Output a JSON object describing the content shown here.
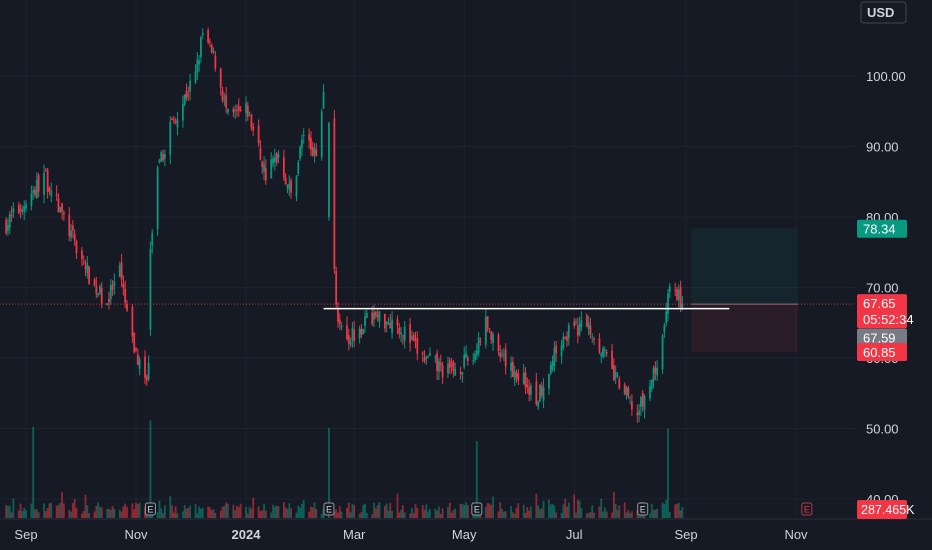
{
  "currency_button": "USD",
  "colors": {
    "background": "#161a25",
    "up": "#089981",
    "down": "#f23645",
    "price_line": "#f23645",
    "support_line": "#ffffff",
    "axis_text": "#d1d4dc",
    "gray_badge": "#787b86"
  },
  "badges": {
    "target": "78.34",
    "last_price": "67.65",
    "countdown": "05:52:34",
    "prev_close": "67.59",
    "stop": "60.85",
    "volume": "287.465K"
  },
  "earnings_marker": "E",
  "chart_data": {
    "type": "candlestick",
    "price_axis": {
      "ticks": [
        40,
        50,
        60,
        70,
        80,
        90,
        100
      ],
      "labels": [
        "40.00",
        "50.00",
        "60.00",
        "70.00",
        "80.00",
        "90.00",
        "100.00"
      ],
      "range": [
        39,
        110
      ]
    },
    "time_axis": {
      "labels": [
        "Sep",
        "Nov",
        "2024",
        "Mar",
        "May",
        "Jul",
        "Sep",
        "Nov"
      ],
      "dates": [
        "2023-09",
        "2023-11",
        "2024-01",
        "2024-03",
        "2024-05",
        "2024-07",
        "2024-09",
        "2024-11"
      ]
    },
    "gap_days": [
      "2024-02-14",
      "2024-02-15"
    ],
    "close_path": [
      [
        "2023-08-21",
        79
      ],
      [
        "2023-09-04",
        83
      ],
      [
        "2023-09-11",
        86
      ],
      [
        "2023-09-25",
        78
      ],
      [
        "2023-10-09",
        70
      ],
      [
        "2023-10-16",
        68
      ],
      [
        "2023-10-23",
        72
      ],
      [
        "2023-10-30",
        62
      ],
      [
        "2023-11-06",
        57
      ],
      [
        "2023-11-08",
        59
      ],
      [
        "2023-11-09",
        75
      ],
      [
        "2023-11-13",
        86
      ],
      [
        "2023-11-20",
        93
      ],
      [
        "2023-12-04",
        100
      ],
      [
        "2023-12-08",
        106
      ],
      [
        "2023-12-15",
        102
      ],
      [
        "2023-12-22",
        94
      ],
      [
        "2024-01-02",
        95
      ],
      [
        "2024-01-12",
        86
      ],
      [
        "2024-01-19",
        89
      ],
      [
        "2024-01-26",
        83
      ],
      [
        "2024-02-02",
        92
      ],
      [
        "2024-02-09",
        88
      ],
      [
        "2024-02-13",
        98
      ],
      [
        "2024-02-16",
        93
      ],
      [
        "2024-02-20",
        67
      ],
      [
        "2024-02-27",
        63
      ],
      [
        "2024-03-11",
        66
      ],
      [
        "2024-03-25",
        65
      ],
      [
        "2024-04-08",
        60
      ],
      [
        "2024-04-22",
        58
      ],
      [
        "2024-05-06",
        60
      ],
      [
        "2024-05-13",
        65
      ],
      [
        "2024-05-20",
        60
      ],
      [
        "2024-06-03",
        57
      ],
      [
        "2024-06-10",
        54
      ],
      [
        "2024-06-24",
        63
      ],
      [
        "2024-07-08",
        65
      ],
      [
        "2024-07-15",
        62
      ],
      [
        "2024-07-22",
        58
      ],
      [
        "2024-08-05",
        52
      ],
      [
        "2024-08-12",
        56
      ],
      [
        "2024-08-19",
        62
      ],
      [
        "2024-08-22",
        70
      ],
      [
        "2024-08-27",
        69
      ],
      [
        "2024-08-30",
        67.65
      ]
    ],
    "volume_spikes": [
      "2023-09-05",
      "2023-11-09",
      "2024-02-16",
      "2024-05-08",
      "2024-08-22"
    ],
    "earnings_dates": [
      "2023-11-09",
      "2024-02-16",
      "2024-05-08",
      "2024-08-08",
      "2024-11-07"
    ],
    "support_level": 67.0,
    "support_range": [
      "2024-02-13",
      "2024-09-25"
    ],
    "last_price": 67.65,
    "prev_close": 67.59,
    "position": {
      "start": "2024-09-04",
      "end": "2024-11-02",
      "entry": 67.65,
      "target": 78.34,
      "stop": 60.85
    }
  }
}
